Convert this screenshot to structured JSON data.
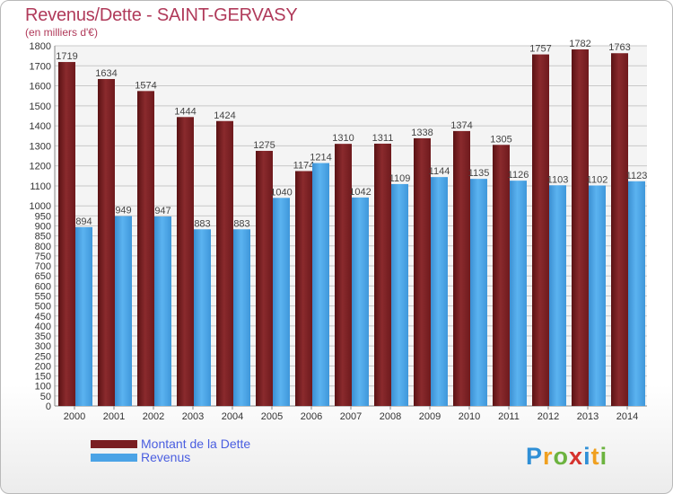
{
  "title": "Revenus/Dette - SAINT-GERVASY",
  "subtitle": "(en milliers d'€)",
  "logo_text": "Proxiti",
  "colors": {
    "title": "#b03a5a",
    "dette": "#7a1e22",
    "revenus": "#4ba3e6",
    "legend_text": "#4a5ee0",
    "grid": "#c8c8c8",
    "plot_bg": "#f4f4f4"
  },
  "legend": {
    "position": "bottom-left",
    "items": [
      {
        "label": "Montant de la Dette",
        "color": "#7a1e22"
      },
      {
        "label": "Revenus",
        "color": "#4ba3e6"
      }
    ]
  },
  "chart_data": {
    "type": "bar",
    "title": "Revenus/Dette - SAINT-GERVASY",
    "subtitle": "(en milliers d'€)",
    "xlabel": "",
    "ylabel": "",
    "ylim": [
      0,
      1800
    ],
    "yticks": [
      0,
      50,
      100,
      150,
      200,
      250,
      300,
      350,
      400,
      450,
      500,
      550,
      600,
      650,
      700,
      750,
      800,
      850,
      900,
      950,
      1000,
      1100,
      1200,
      1300,
      1400,
      1500,
      1600,
      1700,
      1800
    ],
    "grid": true,
    "categories": [
      "2000",
      "2001",
      "2002",
      "2003",
      "2004",
      "2005",
      "2006",
      "2007",
      "2008",
      "2009",
      "2010",
      "2011",
      "2012",
      "2013",
      "2014"
    ],
    "series": [
      {
        "name": "Montant de la Dette",
        "color": "#7a1e22",
        "values": [
          1719,
          1634,
          1574,
          1444,
          1424,
          1275,
          1174,
          1310,
          1311,
          1338,
          1374,
          1305,
          1757,
          1782,
          1763
        ]
      },
      {
        "name": "Revenus",
        "color": "#4ba3e6",
        "values": [
          894,
          949,
          947,
          883,
          883,
          1040,
          1214,
          1042,
          1109,
          1144,
          1135,
          1126,
          1103,
          1102,
          1123
        ]
      }
    ]
  }
}
